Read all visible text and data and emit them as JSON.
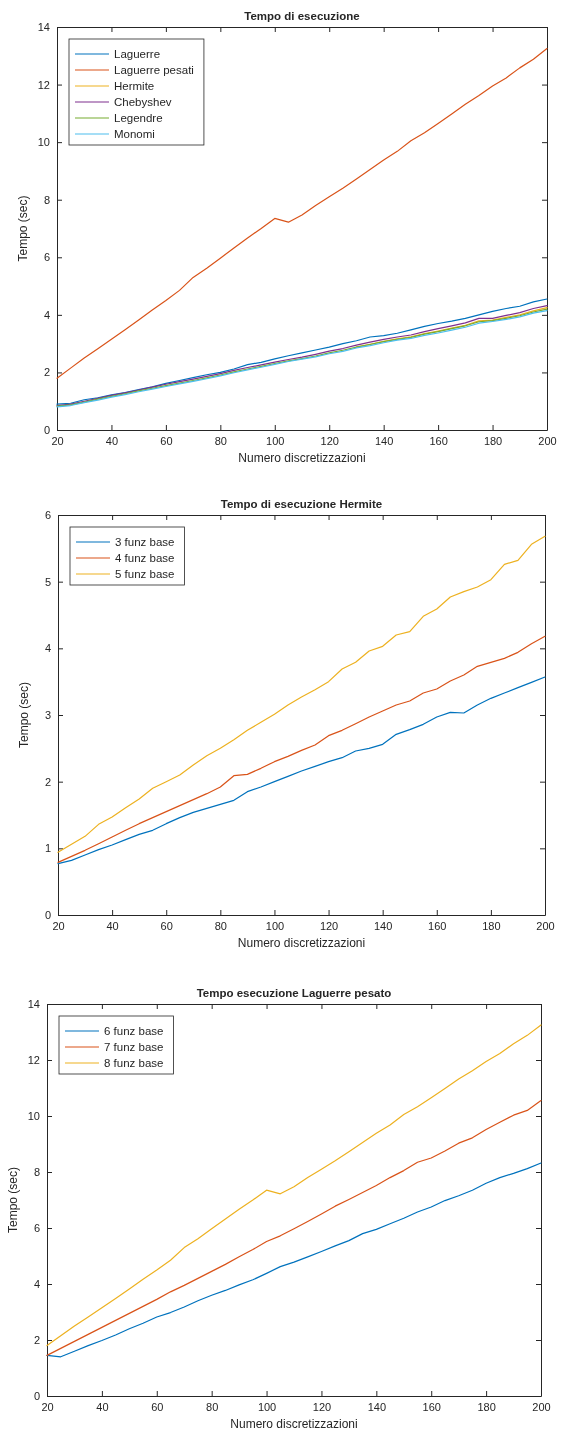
{
  "chart_data": [
    {
      "type": "line",
      "title": "Tempo di esecuzione",
      "xlabel": "Numero discretizzazioni",
      "ylabel": "Tempo  (sec)",
      "x": [
        20,
        25,
        30,
        35,
        40,
        45,
        50,
        55,
        60,
        65,
        70,
        75,
        80,
        85,
        90,
        95,
        100,
        105,
        110,
        115,
        120,
        125,
        130,
        135,
        140,
        145,
        150,
        155,
        160,
        165,
        170,
        175,
        180,
        185,
        190,
        195,
        200
      ],
      "xlim": [
        20,
        200
      ],
      "xticks": [
        20,
        40,
        60,
        80,
        100,
        120,
        140,
        160,
        180,
        200
      ],
      "ylim": [
        0,
        14
      ],
      "yticks": [
        0,
        2,
        4,
        6,
        8,
        10,
        12,
        14
      ],
      "legend": "top left",
      "series": [
        {
          "name": "Laguerre",
          "color": "#0072bd",
          "values": [
            0.9,
            0.93,
            1.05,
            1.12,
            1.22,
            1.3,
            1.4,
            1.5,
            1.62,
            1.72,
            1.82,
            1.92,
            2.0,
            2.12,
            2.27,
            2.35,
            2.47,
            2.58,
            2.68,
            2.78,
            2.88,
            3.0,
            3.1,
            3.23,
            3.28,
            3.36,
            3.48,
            3.6,
            3.7,
            3.78,
            3.88,
            4.0,
            4.12,
            4.22,
            4.3,
            4.45,
            4.55
          ]
        },
        {
          "name": "Laguerre pesati",
          "color": "#d95319",
          "values": [
            1.8,
            2.15,
            2.5,
            2.82,
            3.15,
            3.48,
            3.82,
            4.17,
            4.5,
            4.85,
            5.3,
            5.62,
            5.97,
            6.32,
            6.67,
            7.0,
            7.35,
            7.22,
            7.47,
            7.8,
            8.1,
            8.4,
            8.72,
            9.05,
            9.38,
            9.68,
            10.05,
            10.33,
            10.65,
            10.98,
            11.32,
            11.62,
            11.95,
            12.23,
            12.58,
            12.88,
            13.25
          ]
        },
        {
          "name": "Hermite",
          "color": "#edb120",
          "values": [
            null,
            null,
            null,
            null,
            null,
            null,
            null,
            null,
            null,
            null,
            null,
            null,
            null,
            null,
            null,
            null,
            null,
            null,
            null,
            null,
            null,
            null,
            2.89,
            2.98,
            3.08,
            3.17,
            3.24,
            3.35,
            3.44,
            3.54,
            3.64,
            3.79,
            3.82,
            3.91,
            4.0,
            4.14,
            4.25
          ]
        },
        {
          "name": "Chebyshev",
          "color": "#7e2f8e",
          "values": [
            0.85,
            0.9,
            1.0,
            1.1,
            1.2,
            1.29,
            1.39,
            1.49,
            1.59,
            1.68,
            1.77,
            1.86,
            1.96,
            2.07,
            2.17,
            2.26,
            2.36,
            2.45,
            2.53,
            2.63,
            2.74,
            2.83,
            2.95,
            3.05,
            3.15,
            3.23,
            3.3,
            3.42,
            3.52,
            3.62,
            3.72,
            3.88,
            3.88,
            3.98,
            4.08,
            4.22,
            4.32
          ]
        },
        {
          "name": "Legendre",
          "color": "#77ac30",
          "values": [
            0.83,
            0.87,
            0.97,
            1.07,
            1.17,
            1.26,
            1.36,
            1.45,
            1.54,
            1.63,
            1.72,
            1.81,
            1.91,
            2.02,
            2.12,
            2.21,
            2.31,
            2.4,
            2.48,
            2.57,
            2.68,
            2.77,
            2.88,
            2.97,
            3.07,
            3.15,
            3.22,
            3.33,
            3.42,
            3.52,
            3.62,
            3.76,
            3.8,
            3.88,
            3.97,
            4.1,
            4.2
          ]
        },
        {
          "name": "Monomi",
          "color": "#4dbeee",
          "values": [
            0.8,
            0.85,
            0.95,
            1.04,
            1.14,
            1.23,
            1.33,
            1.42,
            1.51,
            1.6,
            1.69,
            1.78,
            1.88,
            1.99,
            2.09,
            2.18,
            2.28,
            2.38,
            2.46,
            2.54,
            2.65,
            2.73,
            2.85,
            2.93,
            3.03,
            3.12,
            3.18,
            3.29,
            3.37,
            3.47,
            3.57,
            3.71,
            3.77,
            3.84,
            3.93,
            4.06,
            4.15
          ]
        }
      ]
    },
    {
      "type": "line",
      "title": "Tempo di esecuzione Hermite",
      "xlabel": "Numero discretizzazioni",
      "ylabel": "Tempo (sec)",
      "x": [
        20,
        25,
        30,
        35,
        40,
        45,
        50,
        55,
        60,
        65,
        70,
        75,
        80,
        85,
        90,
        95,
        100,
        105,
        110,
        115,
        120,
        125,
        130,
        135,
        140,
        145,
        150,
        155,
        160,
        165,
        170,
        175,
        180,
        185,
        190,
        195,
        200
      ],
      "xlim": [
        20,
        200
      ],
      "xticks": [
        20,
        40,
        60,
        80,
        100,
        120,
        140,
        160,
        180,
        200
      ],
      "ylim": [
        0,
        6
      ],
      "yticks": [
        0,
        1,
        2,
        3,
        4,
        5,
        6
      ],
      "legend": "top left",
      "series": [
        {
          "name": "3 funz base",
          "color": "#0072bd",
          "values": [
            0.77,
            0.82,
            0.9,
            0.98,
            1.05,
            1.13,
            1.21,
            1.27,
            1.37,
            1.46,
            1.54,
            1.6,
            1.66,
            1.72,
            1.85,
            1.92,
            2.0,
            2.08,
            2.16,
            2.23,
            2.3,
            2.36,
            2.46,
            2.5,
            2.56,
            2.71,
            2.78,
            2.86,
            2.97,
            3.04,
            3.03,
            3.15,
            3.25,
            3.33,
            3.41,
            3.49,
            3.57
          ]
        },
        {
          "name": "4 funz base",
          "color": "#d95319",
          "values": [
            0.79,
            0.88,
            0.97,
            1.07,
            1.17,
            1.27,
            1.37,
            1.46,
            1.55,
            1.64,
            1.73,
            1.82,
            1.92,
            2.09,
            2.11,
            2.2,
            2.3,
            2.38,
            2.47,
            2.55,
            2.69,
            2.77,
            2.87,
            2.97,
            3.06,
            3.15,
            3.21,
            3.33,
            3.39,
            3.51,
            3.6,
            3.73,
            3.79,
            3.85,
            3.94,
            4.07,
            4.18
          ]
        },
        {
          "name": "5 funz base",
          "color": "#edb120",
          "values": [
            0.94,
            1.06,
            1.18,
            1.36,
            1.47,
            1.61,
            1.74,
            1.9,
            2.0,
            2.1,
            2.25,
            2.39,
            2.5,
            2.63,
            2.77,
            2.89,
            3.01,
            3.15,
            3.27,
            3.38,
            3.5,
            3.69,
            3.79,
            3.96,
            4.03,
            4.2,
            4.25,
            4.48,
            4.59,
            4.77,
            4.85,
            4.92,
            5.03,
            5.26,
            5.32,
            5.56,
            5.68
          ]
        }
      ]
    },
    {
      "type": "line",
      "title": "Tempo esecuzione Laguerre pesato",
      "xlabel": "Numero discretizzazioni",
      "ylabel": "Tempo (sec)",
      "x": [
        20,
        25,
        30,
        35,
        40,
        45,
        50,
        55,
        60,
        65,
        70,
        75,
        80,
        85,
        90,
        95,
        100,
        105,
        110,
        115,
        120,
        125,
        130,
        135,
        140,
        145,
        150,
        155,
        160,
        165,
        170,
        175,
        180,
        185,
        190,
        195,
        200
      ],
      "xlim": [
        20,
        200
      ],
      "xticks": [
        20,
        40,
        60,
        80,
        100,
        120,
        140,
        160,
        180,
        200
      ],
      "ylim": [
        0,
        14
      ],
      "yticks": [
        0,
        2,
        4,
        6,
        8,
        10,
        12,
        14
      ],
      "legend": "top left",
      "series": [
        {
          "name": "6 funz base",
          "color": "#0072bd",
          "values": [
            1.45,
            1.4,
            1.6,
            1.8,
            1.98,
            2.18,
            2.4,
            2.6,
            2.82,
            2.98,
            3.18,
            3.4,
            3.6,
            3.77,
            3.97,
            4.15,
            4.38,
            4.62,
            4.78,
            4.97,
            5.16,
            5.36,
            5.55,
            5.8,
            5.95,
            6.15,
            6.35,
            6.57,
            6.75,
            6.98,
            7.15,
            7.35,
            7.6,
            7.8,
            7.95,
            8.12,
            8.32
          ]
        },
        {
          "name": "7 funz base",
          "color": "#d95319",
          "values": [
            1.45,
            1.7,
            1.95,
            2.2,
            2.45,
            2.7,
            2.95,
            3.2,
            3.45,
            3.72,
            3.95,
            4.2,
            4.45,
            4.7,
            4.97,
            5.23,
            5.52,
            5.72,
            5.97,
            6.23,
            6.5,
            6.78,
            7.02,
            7.27,
            7.52,
            7.8,
            8.05,
            8.35,
            8.5,
            8.75,
            9.03,
            9.22,
            9.52,
            9.78,
            10.03,
            10.2,
            10.55
          ]
        },
        {
          "name": "8 funz base",
          "color": "#edb120",
          "values": [
            1.8,
            2.15,
            2.5,
            2.82,
            3.15,
            3.48,
            3.82,
            4.17,
            4.5,
            4.85,
            5.3,
            5.62,
            5.97,
            6.32,
            6.67,
            7.0,
            7.35,
            7.22,
            7.47,
            7.8,
            8.1,
            8.4,
            8.72,
            9.05,
            9.38,
            9.68,
            10.05,
            10.33,
            10.65,
            10.98,
            11.32,
            11.62,
            11.95,
            12.23,
            12.58,
            12.88,
            13.25
          ]
        }
      ]
    }
  ]
}
